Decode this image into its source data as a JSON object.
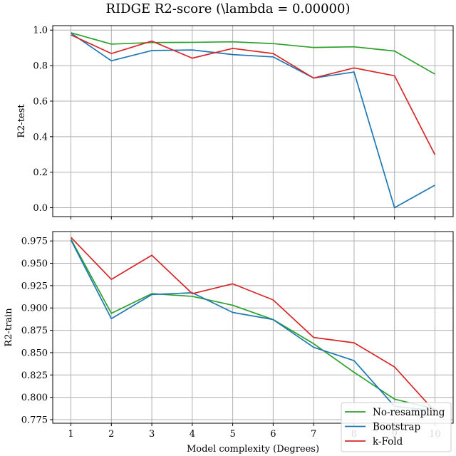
{
  "figure": {
    "title": "RIDGE R2-score (\\lambda = 0.00000)",
    "xlabel": "Model complexity (Degrees)"
  },
  "legend": {
    "placement": "lower-right"
  },
  "chart_data": [
    {
      "type": "line",
      "ylabel": "R2-test",
      "x": [
        1,
        2,
        3,
        4,
        5,
        6,
        7,
        8,
        9,
        10
      ],
      "xlim": [
        0.55,
        10.45
      ],
      "ylim": [
        -0.05,
        1.025
      ],
      "yticks": [
        "0.0",
        "0.2",
        "0.4",
        "0.6",
        "0.8",
        "1.0"
      ],
      "ytick_values": [
        0.0,
        0.2,
        0.4,
        0.6,
        0.8,
        1.0
      ],
      "grid": true,
      "series": [
        {
          "name": "No-resampling",
          "color": "#2ca02c",
          "values": [
            0.985,
            0.921,
            0.93,
            0.931,
            0.934,
            0.924,
            0.902,
            0.906,
            0.882,
            0.752
          ]
        },
        {
          "name": "Bootstrap",
          "color": "#1f77b4",
          "values": [
            0.983,
            0.827,
            0.885,
            0.888,
            0.862,
            0.849,
            0.73,
            0.764,
            0.0,
            0.127
          ]
        },
        {
          "name": "k-Fold",
          "color": "#d62728",
          "values": [
            0.973,
            0.868,
            0.938,
            0.842,
            0.897,
            0.868,
            0.73,
            0.787,
            0.743,
            0.298
          ]
        }
      ]
    },
    {
      "type": "line",
      "ylabel": "R2-train",
      "x": [
        1,
        2,
        3,
        4,
        5,
        6,
        7,
        8,
        9,
        10
      ],
      "xlim": [
        0.55,
        10.45
      ],
      "ylim": [
        0.771,
        0.9855
      ],
      "yticks": [
        "0.775",
        "0.800",
        "0.825",
        "0.850",
        "0.875",
        "0.900",
        "0.925",
        "0.950",
        "0.975"
      ],
      "ytick_values": [
        0.775,
        0.8,
        0.825,
        0.85,
        0.875,
        0.9,
        0.925,
        0.95,
        0.975
      ],
      "xticks": [
        "1",
        "2",
        "3",
        "4",
        "5",
        "6",
        "7",
        "8",
        "9",
        "10"
      ],
      "grid": true,
      "series": [
        {
          "name": "No-resampling",
          "color": "#2ca02c",
          "values": [
            0.977,
            0.894,
            0.916,
            0.913,
            0.903,
            0.887,
            0.86,
            0.828,
            0.798,
            0.787
          ]
        },
        {
          "name": "Bootstrap",
          "color": "#1f77b4",
          "values": [
            0.976,
            0.888,
            0.915,
            0.917,
            0.895,
            0.887,
            0.856,
            0.841,
            0.79,
            0.785
          ]
        },
        {
          "name": "k-Fold",
          "color": "#d62728",
          "values": [
            0.979,
            0.932,
            0.959,
            0.916,
            0.927,
            0.909,
            0.867,
            0.861,
            0.834,
            0.784
          ]
        }
      ]
    }
  ]
}
